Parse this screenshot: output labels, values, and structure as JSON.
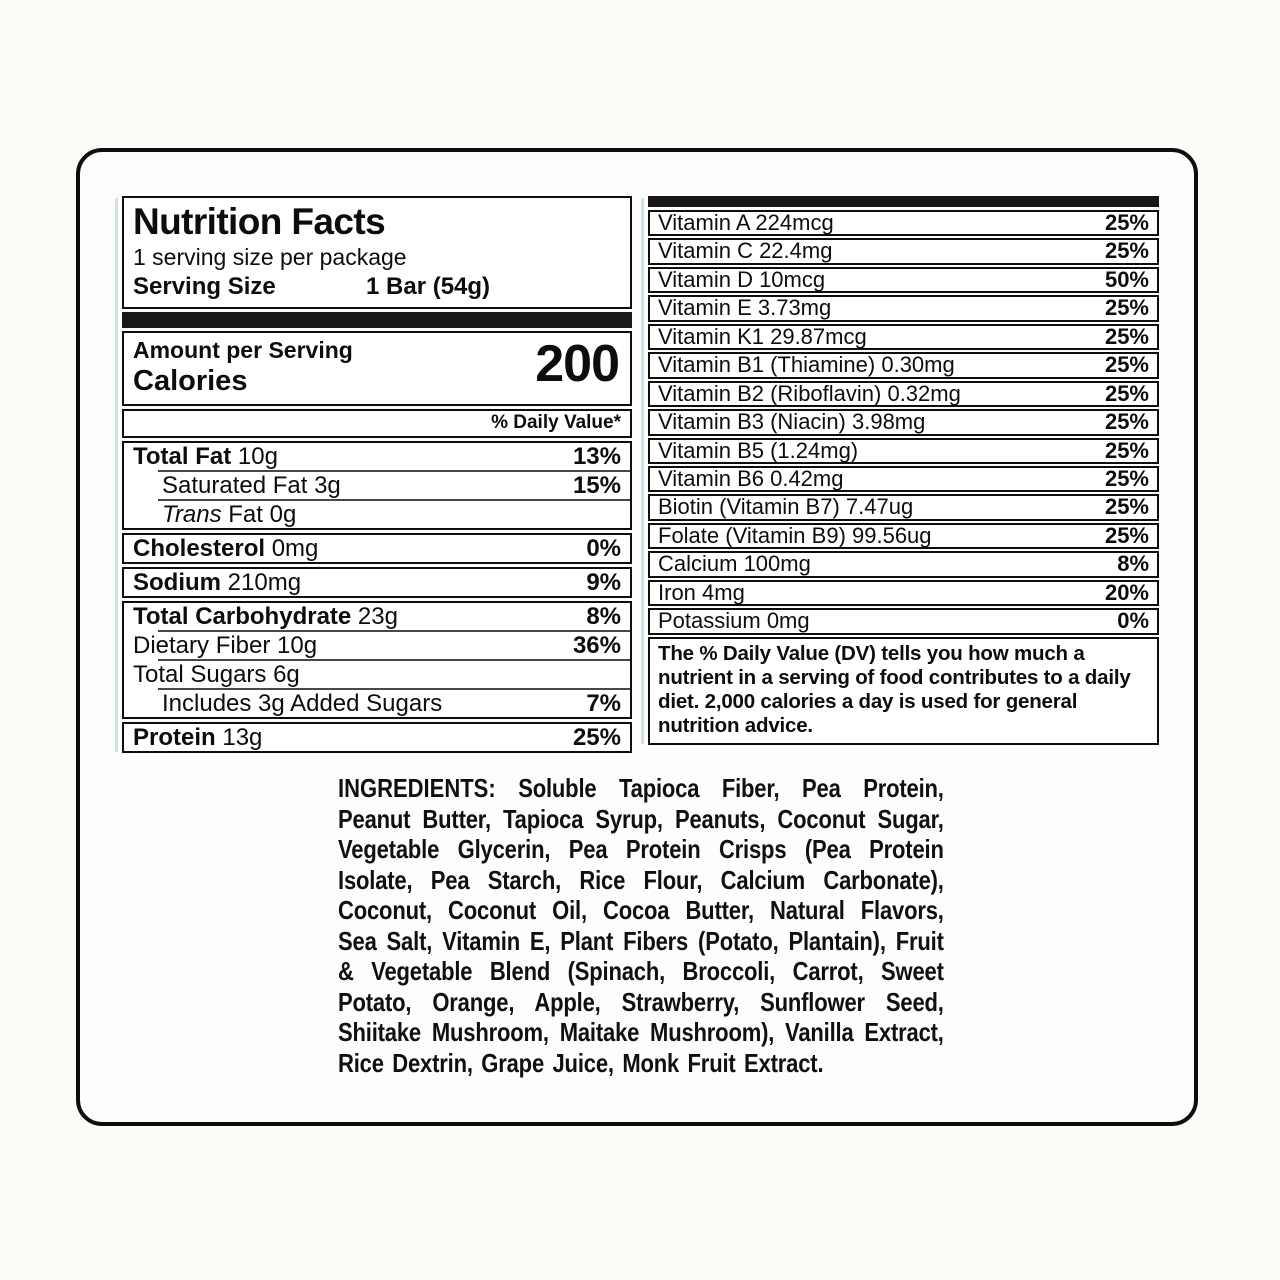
{
  "panel": {
    "title": "Nutrition Facts",
    "servings_line": "1 serving size per package",
    "serving_size_label": "Serving Size",
    "serving_size_value": "1 Bar (54g)",
    "amount_label": "Amount per Serving",
    "calories_label": "Calories",
    "calories_value": "200",
    "daily_value_header": "% Daily Value*",
    "nutrient_groups": [
      {
        "rows": [
          {
            "name": "Total Fat",
            "amount": "10g",
            "bold": true,
            "pct": "13%"
          },
          {
            "name": "Saturated Fat",
            "amount": "3g",
            "indent": true,
            "pct": "15%"
          },
          {
            "name": "Trans",
            "italic": true,
            "amount": "Fat 0g",
            "indent": true,
            "pct": ""
          }
        ]
      },
      {
        "rows": [
          {
            "name": "Cholesterol",
            "amount": "0mg",
            "bold": true,
            "pct": "0%"
          }
        ]
      },
      {
        "rows": [
          {
            "name": "Sodium",
            "amount": "210mg",
            "bold": true,
            "pct": "9%"
          }
        ]
      },
      {
        "rows": [
          {
            "name": "Total Carbohydrate",
            "amount": "23g",
            "bold": true,
            "pct": "8%"
          },
          {
            "name": "Dietary Fiber",
            "amount": "10g",
            "pct": "36%"
          },
          {
            "name": "Total Sugars",
            "amount": "6g",
            "pct": ""
          },
          {
            "name": "Includes 3g Added Sugars",
            "amount": "",
            "indent": true,
            "pct": "7%"
          }
        ]
      },
      {
        "rows": [
          {
            "name": "Protein",
            "amount": "13g",
            "bold": true,
            "pct": "25%"
          }
        ]
      }
    ],
    "micronutrients": [
      {
        "name": "Vitamin A 224mcg",
        "pct": "25%"
      },
      {
        "name": "Vitamin C 22.4mg",
        "pct": "25%"
      },
      {
        "name": "Vitamin D 10mcg",
        "pct": "50%"
      },
      {
        "name": "Vitamin E 3.73mg",
        "pct": "25%"
      },
      {
        "name": "Vitamin K1 29.87mcg",
        "pct": "25%"
      },
      {
        "name": "Vitamin B1 (Thiamine) 0.30mg",
        "pct": "25%"
      },
      {
        "name": "Vitamin B2 (Riboflavin) 0.32mg",
        "pct": "25%"
      },
      {
        "name": "Vitamin B3 (Niacin) 3.98mg",
        "pct": "25%"
      },
      {
        "name": "Vitamin B5 (1.24mg)",
        "pct": "25%"
      },
      {
        "name": "Vitamin B6 0.42mg",
        "pct": "25%"
      },
      {
        "name": "Biotin (Vitamin B7) 7.47ug",
        "pct": "25%"
      },
      {
        "name": "Folate (Vitamin B9) 99.56ug",
        "pct": "25%"
      },
      {
        "name": "Calcium 100mg",
        "pct": "8%"
      },
      {
        "name": "Iron 4mg",
        "pct": "20%"
      },
      {
        "name": "Potassium 0mg",
        "pct": "0%"
      }
    ],
    "footnote": "The % Daily Value (DV) tells you how much a nutrient in a serving of food contributes to a daily diet. 2,000 calories a day is used for general nutrition advice."
  },
  "ingredients": {
    "label": "INGREDIENTS:",
    "text": "Soluble Tapioca Fiber, Pea Protein, Peanut Butter, Tapioca Syrup, Peanuts, Coconut Sugar, Vegetable Glycerin, Pea Protein Crisps (Pea Protein Isolate, Pea Starch, Rice Flour, Calcium Carbonate), Coconut, Coconut Oil, Cocoa Butter, Natural Flavors, Sea Salt, Vitamin E, Plant Fibers (Potato, Plantain), Fruit & Vegetable Blend (Spinach, Broccoli, Carrot, Sweet Potato, Orange, Apple, Strawberry, Sunflower Seed, Shiitake Mushroom, Maitake Mushroom), Vanilla Extract, Rice Dextrin, Grape Juice, Monk Fruit Extract."
  },
  "colors": {
    "text": "#0d0d0d",
    "border": "#0e0e0e",
    "divider_bar": "#171717",
    "accent_line": "#c9e4ef",
    "background": "#fbfbf8",
    "card_background": "#fdfdfc"
  }
}
